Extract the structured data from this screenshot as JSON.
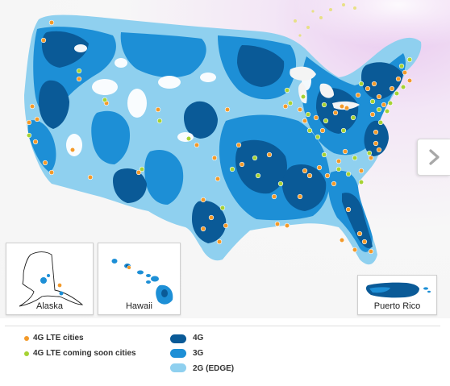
{
  "insets": {
    "alaska": "Alaska",
    "hawaii": "Hawaii",
    "puerto_rico": "Puerto Rico"
  },
  "legend": {
    "lte_cities": "4G LTE cities",
    "lte_coming": "4G LTE coming soon cities",
    "g4": "4G",
    "g3": "3G",
    "g2": "2G (EDGE)"
  },
  "colors": {
    "g4": "#0a5a97",
    "g3": "#1d8fd6",
    "g2": "#8fd0ef",
    "lte_city_dot": "#f39a2a",
    "lte_coming_dot": "#a6d233"
  },
  "icons": {
    "next": "chevron-right-icon"
  }
}
